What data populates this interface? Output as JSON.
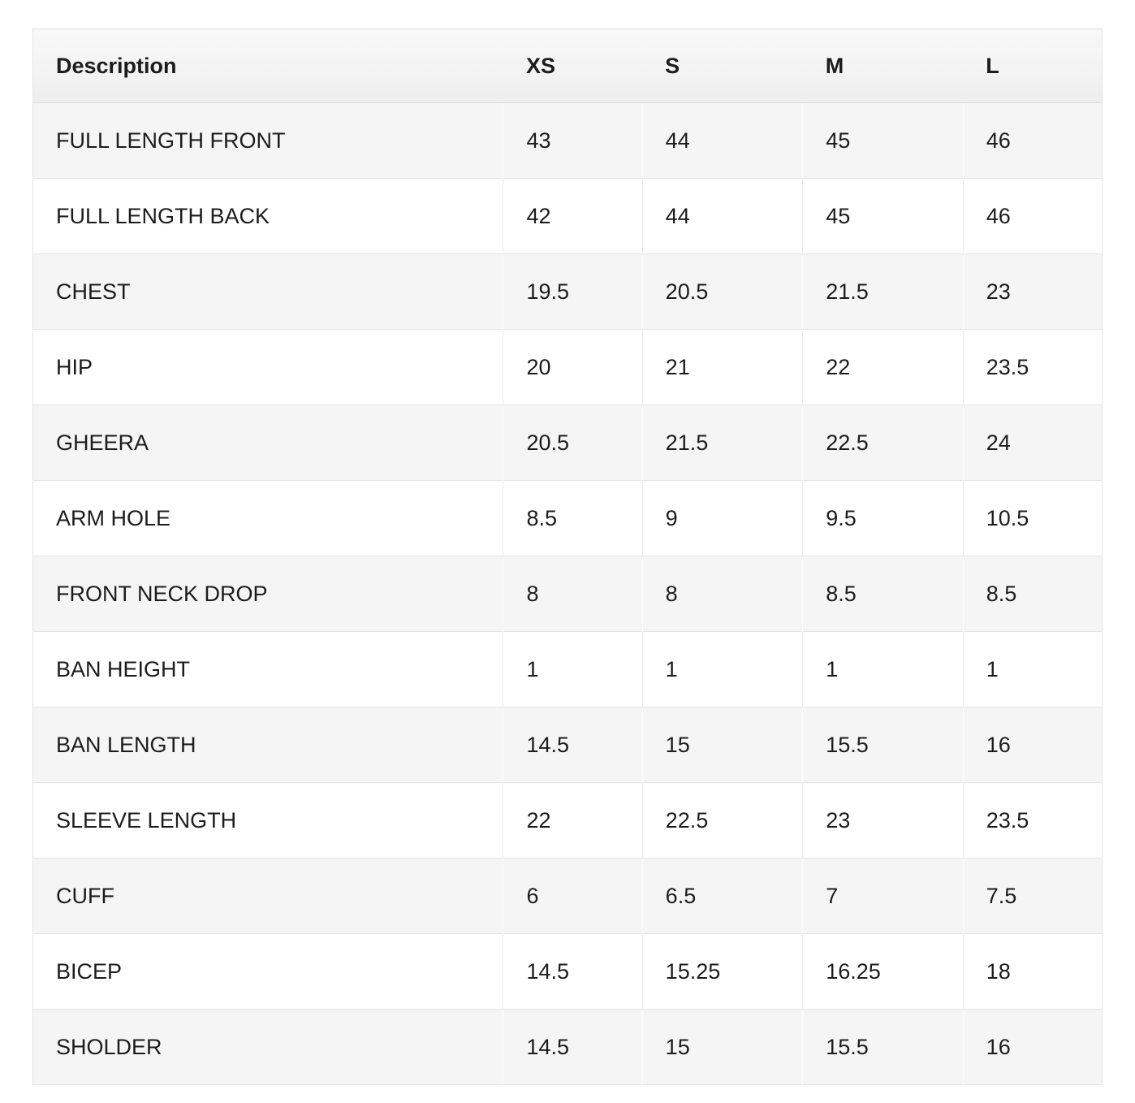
{
  "size_chart": {
    "columns": [
      {
        "key": "description",
        "label": "Description"
      },
      {
        "key": "xs",
        "label": "XS"
      },
      {
        "key": "s",
        "label": "S"
      },
      {
        "key": "m",
        "label": "M"
      },
      {
        "key": "l",
        "label": "L"
      }
    ],
    "rows": [
      {
        "label": "FULL LENGTH FRONT",
        "values": [
          "43",
          "44",
          "45",
          "46"
        ]
      },
      {
        "label": "FULL LENGTH BACK",
        "values": [
          "42",
          "44",
          "45",
          "46"
        ]
      },
      {
        "label": "CHEST",
        "values": [
          "19.5",
          "20.5",
          "21.5",
          "23"
        ]
      },
      {
        "label": "HIP",
        "values": [
          "20",
          "21",
          "22",
          "23.5"
        ]
      },
      {
        "label": "GHEERA",
        "values": [
          "20.5",
          "21.5",
          "22.5",
          "24"
        ]
      },
      {
        "label": "ARM HOLE",
        "values": [
          "8.5",
          "9",
          "9.5",
          "10.5"
        ]
      },
      {
        "label": "FRONT NECK DROP",
        "values": [
          "8",
          "8",
          "8.5",
          "8.5"
        ]
      },
      {
        "label": "BAN HEIGHT",
        "values": [
          "1",
          "1",
          "1",
          "1"
        ]
      },
      {
        "label": "BAN LENGTH",
        "values": [
          "14.5",
          "15",
          "15.5",
          "16"
        ]
      },
      {
        "label": "SLEEVE LENGTH",
        "values": [
          "22",
          "22.5",
          "23",
          "23.5"
        ]
      },
      {
        "label": "CUFF",
        "values": [
          "6",
          "6.5",
          "7",
          "7.5"
        ]
      },
      {
        "label": "BICEP",
        "values": [
          "14.5",
          "15.25",
          "16.25",
          "18"
        ]
      },
      {
        "label": "SHOLDER",
        "values": [
          "14.5",
          "15",
          "15.5",
          "16"
        ]
      }
    ],
    "colors": {
      "row_stripe": "#f5f5f5",
      "row_plain": "#ffffff",
      "header_bg_top": "#f8f8f8",
      "header_bg_bottom": "#ededed",
      "border": "#e4e4e4",
      "header_bottom_border": "#d9d9d9",
      "text": "#1c1c1c"
    }
  }
}
